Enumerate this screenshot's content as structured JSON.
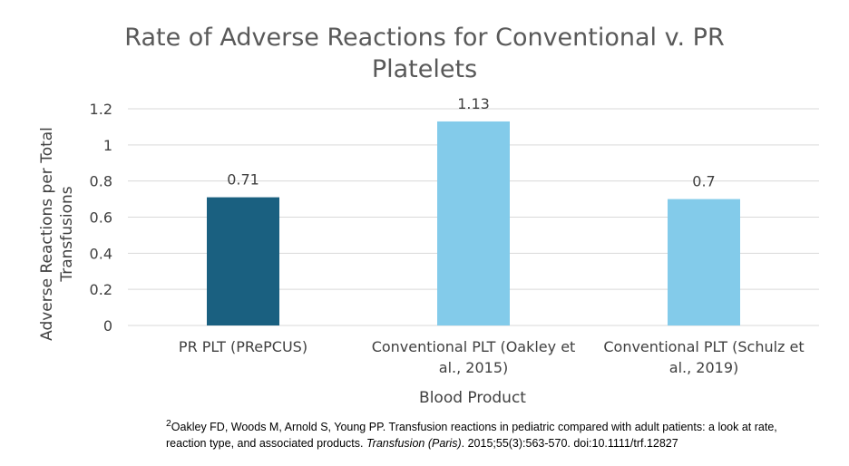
{
  "chart_data": {
    "type": "bar",
    "title_lines": [
      "Rate of Adverse Reactions for Conventional v. PR",
      "Platelets"
    ],
    "xlabel": "Blood Product",
    "ylabel_lines": [
      "Adverse Reactions per Total",
      "Transfusions"
    ],
    "ylim": [
      0,
      1.2
    ],
    "yticks": [
      0,
      0.2,
      0.4,
      0.6,
      0.8,
      1,
      1.2
    ],
    "ytick_labels": [
      "0",
      "0.2",
      "0.4",
      "0.6",
      "0.8",
      "1",
      "1.2"
    ],
    "grid": true,
    "categories": [
      "PR PLT (PRePCUS)",
      "Conventional PLT (Oakley et al., 2015)",
      "Conventional PLT (Schulz et al., 2019)"
    ],
    "category_label_lines": [
      [
        "PR PLT (PRePCUS)"
      ],
      [
        "Conventional PLT (Oakley et",
        "al., 2015)"
      ],
      [
        "Conventional PLT (Schulz et",
        "al., 2019)"
      ]
    ],
    "values": [
      0.71,
      1.13,
      0.7
    ],
    "data_labels": [
      "0.71",
      "1.13",
      "0.7"
    ],
    "bar_colors": [
      "#1a6080",
      "#83cbea",
      "#83cbea"
    ],
    "gridline_color": "#d9d9d9"
  },
  "footnote": {
    "superscript": "2",
    "part1": "Oakley FD, Woods M, Arnold S, Young PP. Transfusion reactions in pediatric compared with adult patients: a look at rate, reaction type, and associated products. ",
    "journal": "Transfusion (Paris)",
    "part2": ". 2015;55(3):563-570. doi:10.1111/trf.12827"
  }
}
